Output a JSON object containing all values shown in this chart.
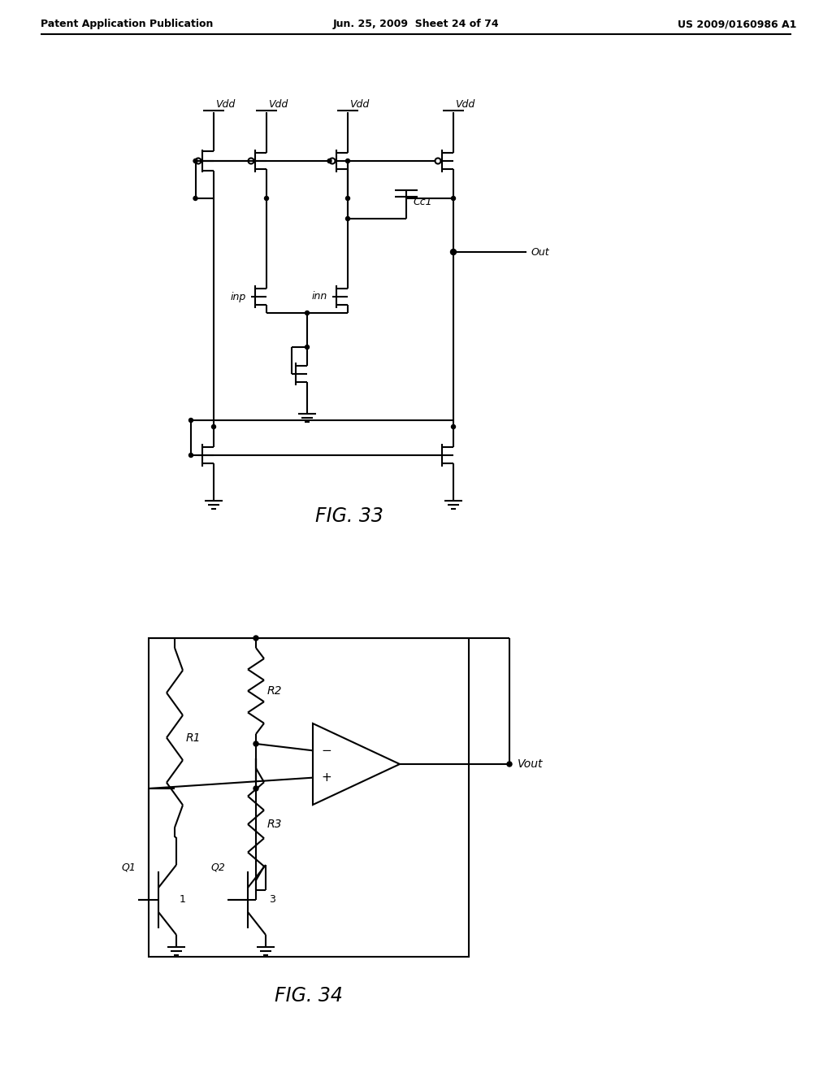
{
  "header_left": "Patent Application Publication",
  "header_mid": "Jun. 25, 2009  Sheet 24 of 74",
  "header_right": "US 2009/0160986 A1",
  "fig33_label": "FIG. 33",
  "fig34_label": "FIG. 34",
  "bg_color": "#ffffff",
  "line_color": "#000000"
}
